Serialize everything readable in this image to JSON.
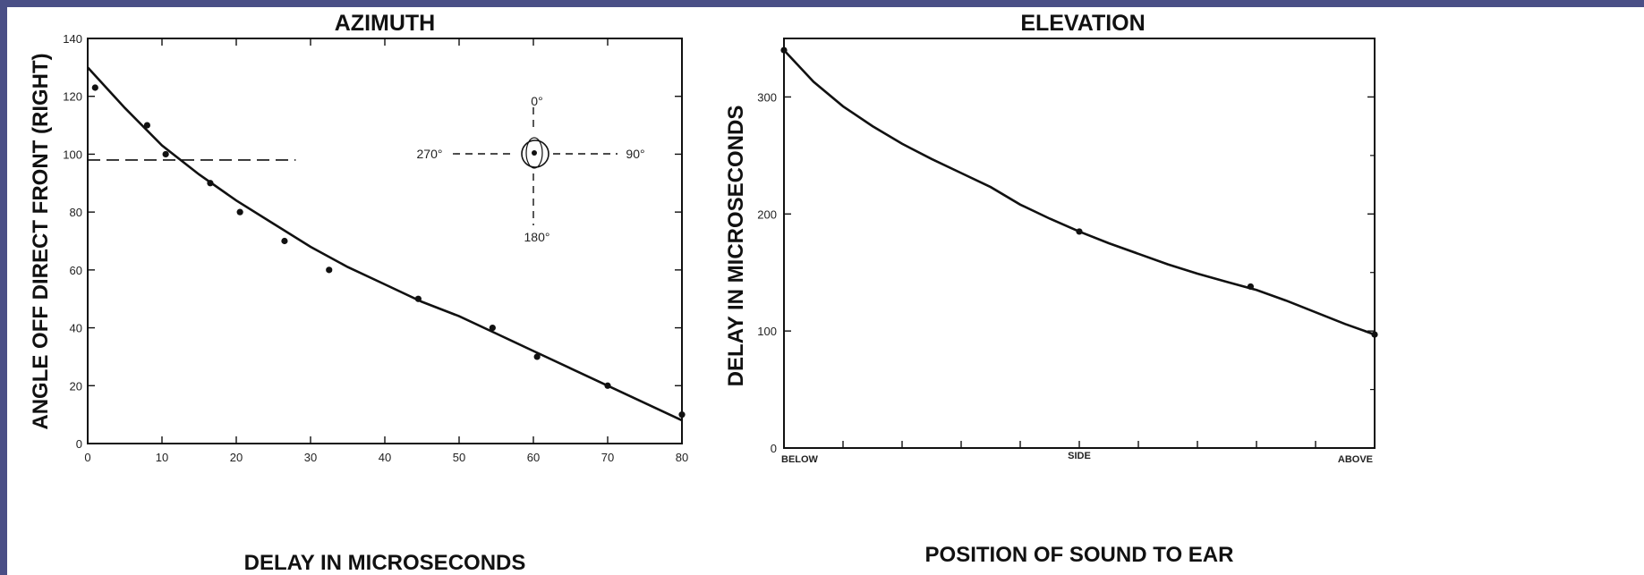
{
  "chart_data": [
    {
      "type": "scatter",
      "title": "AZIMUTH",
      "xlabel": "DELAY IN MICROSECONDS",
      "ylabel": "ANGLE OFF DIRECT FRONT (RIGHT)",
      "xlim": [
        0,
        80
      ],
      "ylim": [
        0,
        140
      ],
      "x_ticks": [
        0,
        10,
        20,
        30,
        40,
        50,
        60,
        70,
        80
      ],
      "y_ticks": [
        0,
        20,
        40,
        60,
        80,
        100,
        120,
        140
      ],
      "grid": false,
      "points": [
        {
          "x": 1,
          "y": 123
        },
        {
          "x": 8,
          "y": 110
        },
        {
          "x": 10.5,
          "y": 100
        },
        {
          "x": 16.5,
          "y": 90
        },
        {
          "x": 20.5,
          "y": 80
        },
        {
          "x": 26.5,
          "y": 70
        },
        {
          "x": 32.5,
          "y": 60
        },
        {
          "x": 44.5,
          "y": 50
        },
        {
          "x": 54.5,
          "y": 40
        },
        {
          "x": 60.5,
          "y": 30
        },
        {
          "x": 70,
          "y": 20
        },
        {
          "x": 80,
          "y": 10
        }
      ],
      "fit_curve": [
        {
          "x": 0,
          "y": 130
        },
        {
          "x": 5,
          "y": 116
        },
        {
          "x": 10,
          "y": 103
        },
        {
          "x": 15,
          "y": 93
        },
        {
          "x": 20,
          "y": 84
        },
        {
          "x": 25,
          "y": 76
        },
        {
          "x": 30,
          "y": 68
        },
        {
          "x": 35,
          "y": 61
        },
        {
          "x": 40,
          "y": 55
        },
        {
          "x": 45,
          "y": 49
        },
        {
          "x": 50,
          "y": 44
        },
        {
          "x": 55,
          "y": 38
        },
        {
          "x": 60,
          "y": 32
        },
        {
          "x": 65,
          "y": 26
        },
        {
          "x": 70,
          "y": 20
        },
        {
          "x": 75,
          "y": 14
        },
        {
          "x": 80,
          "y": 8
        }
      ],
      "reference_line": {
        "y": 98,
        "x_from": 0,
        "x_to": 28
      },
      "compass": {
        "labels": [
          "0°",
          "90°",
          "180°",
          "270°"
        ]
      }
    },
    {
      "type": "line",
      "title": "ELEVATION",
      "xlabel": "POSITION OF SOUND TO EAR",
      "ylabel": "DELAY IN MICROSECONDS",
      "ylim": [
        0,
        350
      ],
      "y_ticks": [
        0,
        100,
        200,
        300
      ],
      "x_categories": [
        "BELOW",
        "SIDE",
        "ABOVE"
      ],
      "grid": false,
      "points": [
        {
          "pos": 0,
          "y": 340
        },
        {
          "pos": 0.5,
          "y": 185
        },
        {
          "pos": 0.79,
          "y": 138
        },
        {
          "pos": 1,
          "y": 97
        }
      ],
      "curve": [
        {
          "pos": 0,
          "y": 340
        },
        {
          "pos": 0.05,
          "y": 313
        },
        {
          "pos": 0.1,
          "y": 292
        },
        {
          "pos": 0.15,
          "y": 275
        },
        {
          "pos": 0.2,
          "y": 260
        },
        {
          "pos": 0.25,
          "y": 247
        },
        {
          "pos": 0.3,
          "y": 235
        },
        {
          "pos": 0.35,
          "y": 223
        },
        {
          "pos": 0.4,
          "y": 208
        },
        {
          "pos": 0.45,
          "y": 196
        },
        {
          "pos": 0.5,
          "y": 185
        },
        {
          "pos": 0.55,
          "y": 175
        },
        {
          "pos": 0.6,
          "y": 166
        },
        {
          "pos": 0.65,
          "y": 157
        },
        {
          "pos": 0.7,
          "y": 149
        },
        {
          "pos": 0.75,
          "y": 142
        },
        {
          "pos": 0.8,
          "y": 135
        },
        {
          "pos": 0.85,
          "y": 126
        },
        {
          "pos": 0.9,
          "y": 116
        },
        {
          "pos": 0.95,
          "y": 106
        },
        {
          "pos": 1,
          "y": 97
        }
      ]
    }
  ]
}
